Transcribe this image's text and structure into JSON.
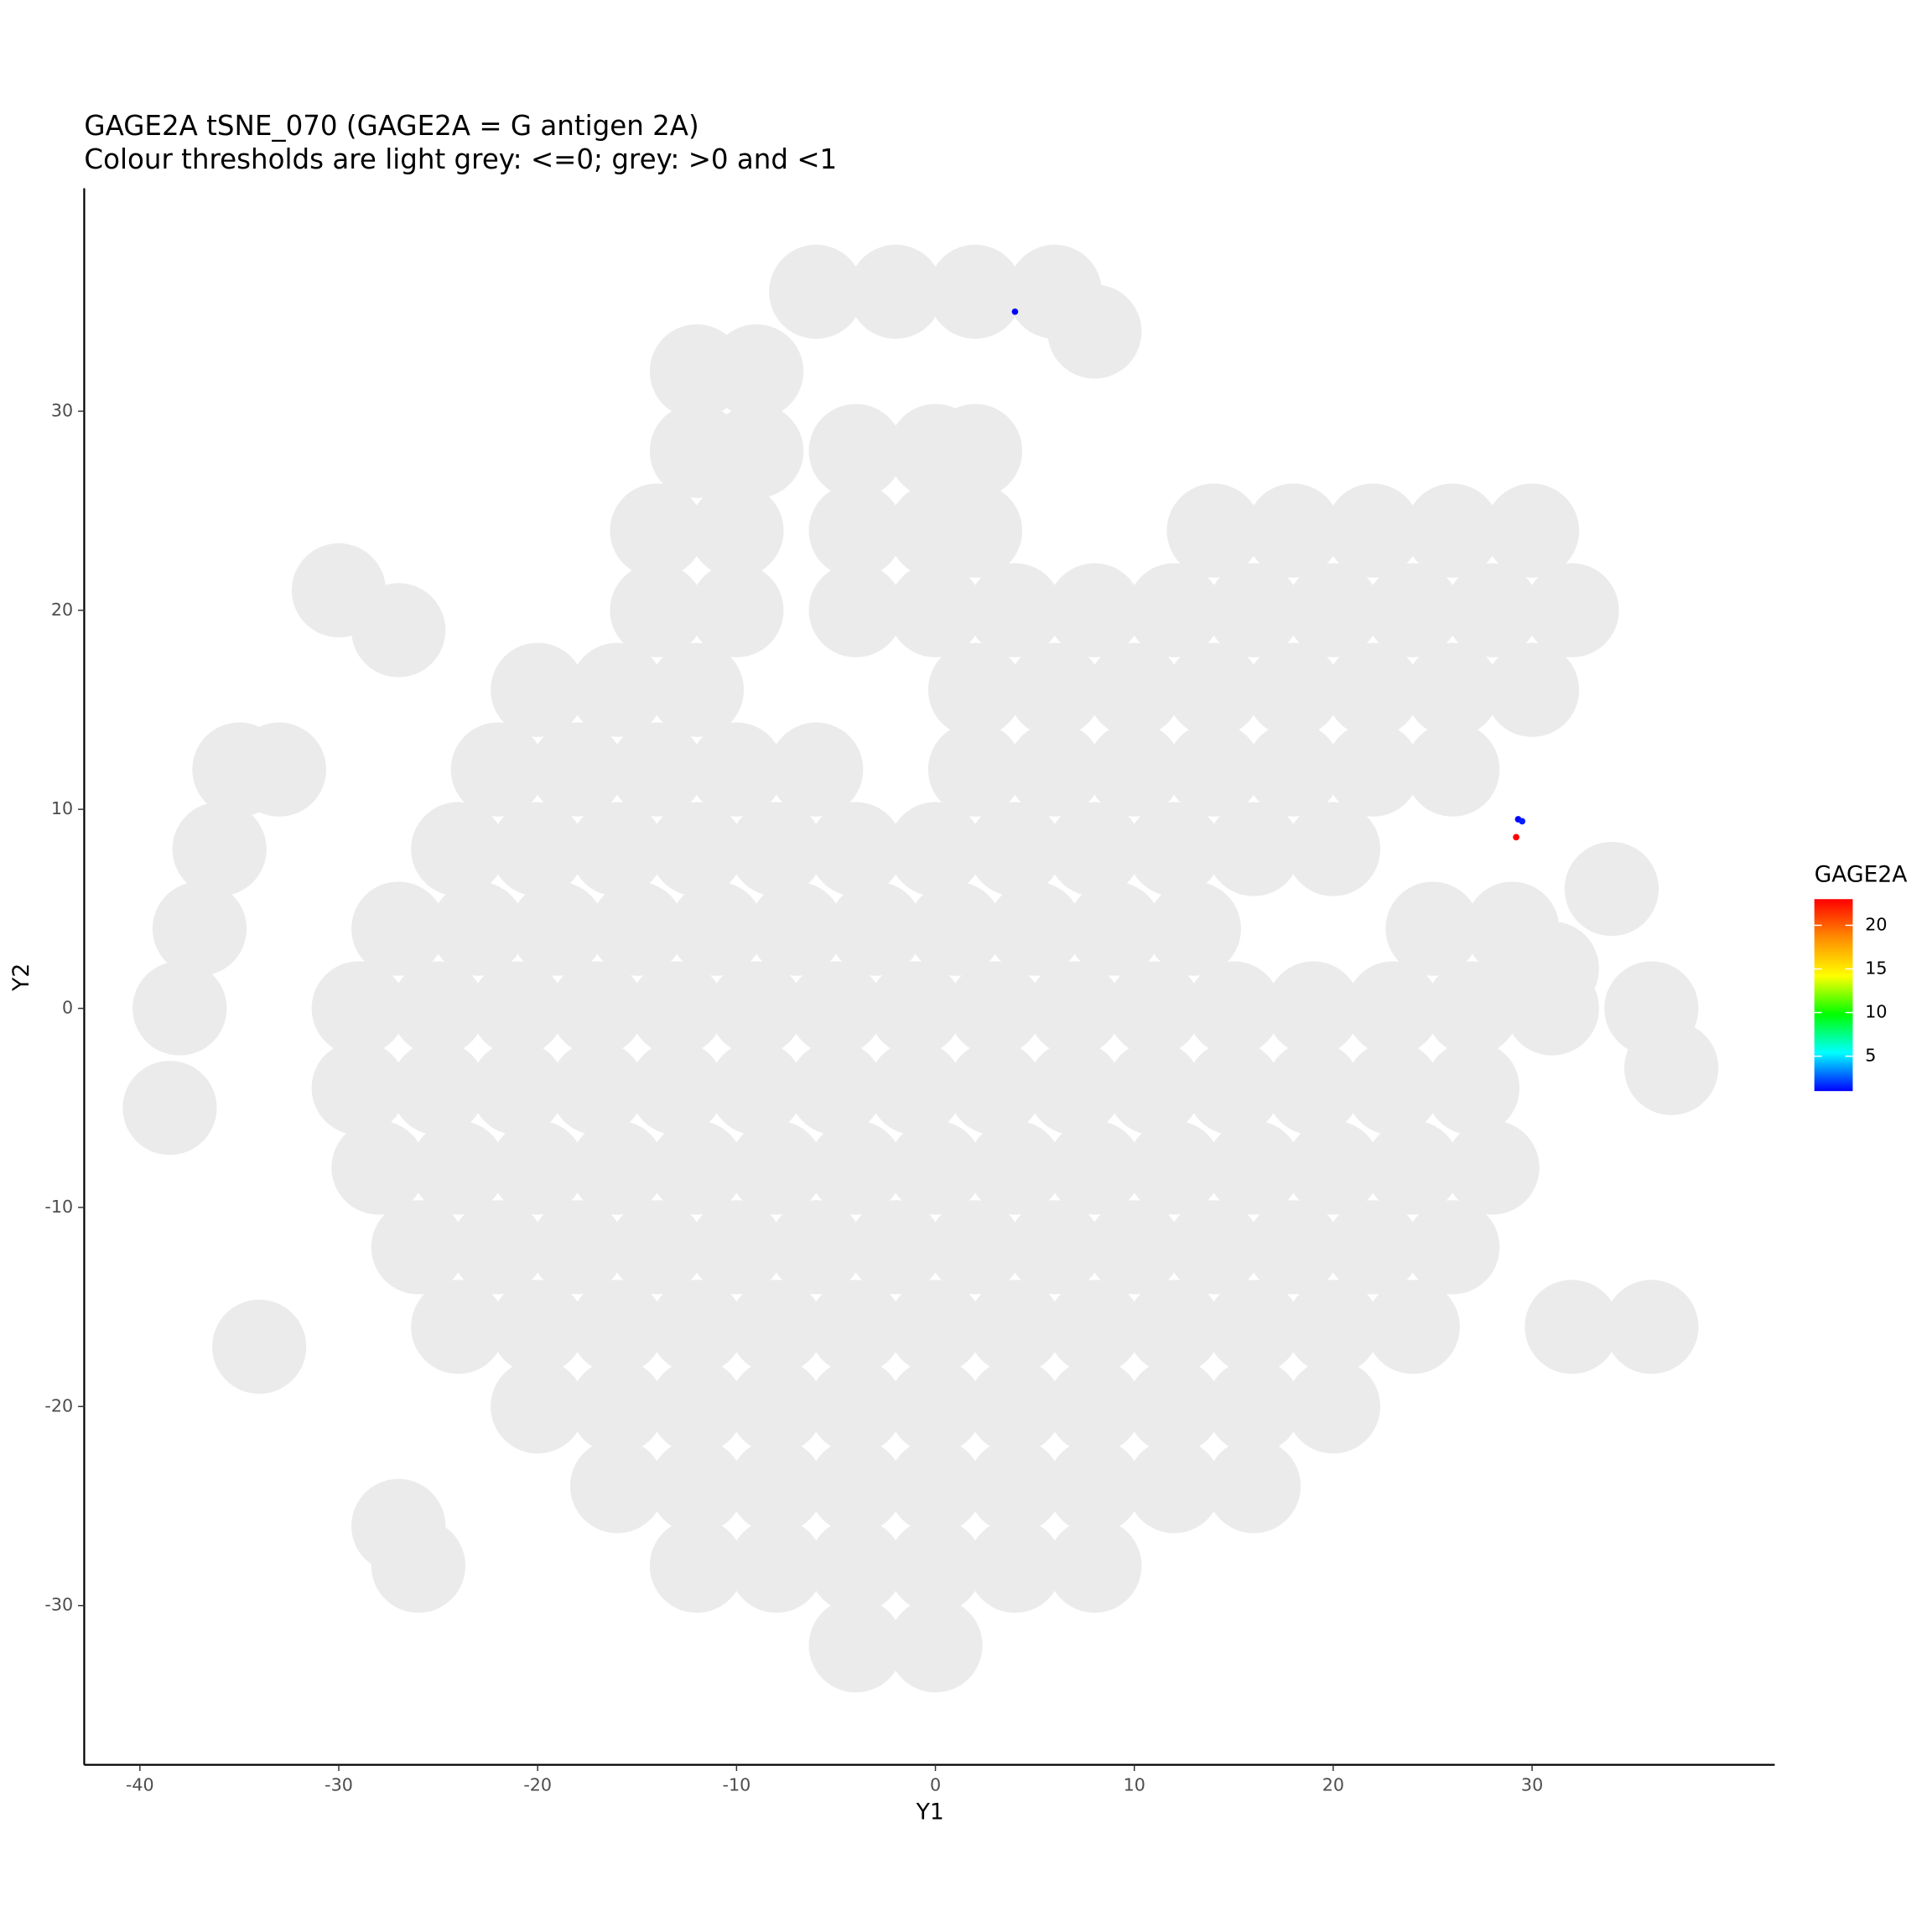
{
  "chart_data": {
    "type": "scatter",
    "title": "GAGE2A tSNE_070 (GAGE2A = G antigen 2A)",
    "subtitle": "Colour thresholds are light grey: <=0; grey: >0 and <1",
    "xlabel": "Y1",
    "ylabel": "Y2",
    "xlim": [
      -42.8,
      42.2
    ],
    "ylim": [
      -38,
      41.2
    ],
    "xticks": [
      -40,
      -30,
      -20,
      -10,
      0,
      10,
      20,
      30
    ],
    "yticks": [
      -30,
      -20,
      -10,
      0,
      10,
      20,
      30
    ],
    "series": [
      {
        "color": "#ebebeb",
        "x": [
          -4,
          0,
          -12,
          -8,
          -4,
          0,
          4,
          8,
          -16,
          -12,
          -8,
          -4,
          0,
          4,
          8,
          12,
          16,
          -20,
          -16,
          -12,
          -8,
          -4,
          0,
          4,
          8,
          12,
          16,
          20,
          -24,
          -20,
          -16,
          -12,
          -8,
          -4,
          0,
          4,
          8,
          12,
          16,
          20,
          24,
          -26,
          -22,
          -18,
          -14,
          -10,
          -6,
          -2,
          2,
          6,
          10,
          14,
          18,
          22,
          26,
          -28,
          -24,
          -20,
          -16,
          -12,
          -8,
          -4,
          0,
          4,
          8,
          12,
          16,
          20,
          24,
          28,
          -29,
          -25,
          -21,
          -17,
          -13,
          -9,
          -5,
          -1,
          3,
          7,
          11,
          15,
          19,
          23,
          27,
          -29,
          -25,
          -21,
          -17,
          -13,
          -9,
          -5,
          -1,
          3,
          7,
          11,
          15,
          19,
          23,
          27,
          31,
          -27,
          -23,
          -19,
          -15,
          -11,
          -7,
          -3,
          1,
          5,
          9,
          13,
          25,
          29,
          -24,
          -20,
          -16,
          -12,
          -8,
          -4,
          0,
          4,
          8,
          12,
          16,
          20,
          -22,
          -18,
          -14,
          -10,
          -6,
          2,
          6,
          10,
          14,
          18,
          22,
          26,
          -20,
          -16,
          -12,
          2,
          6,
          10,
          14,
          18,
          22,
          26,
          30,
          -14,
          -10,
          -4,
          0,
          4,
          8,
          12,
          16,
          20,
          24,
          28,
          32,
          -14,
          -10,
          -4,
          0,
          2,
          14,
          18,
          22,
          26,
          30,
          -12,
          -9,
          -4,
          0,
          2,
          -12,
          -9,
          -6,
          -2,
          2,
          6,
          8,
          -38,
          -37,
          -36,
          -35,
          -38.5,
          -27,
          -26,
          -34,
          -30,
          -27,
          34,
          36,
          37,
          32,
          36,
          31,
          -33
        ],
        "values": [
          -32,
          -32,
          -28,
          -28,
          -28,
          -28,
          -28,
          -28,
          -24,
          -24,
          -24,
          -24,
          -24,
          -24,
          -24,
          -24,
          -24,
          -20,
          -20,
          -20,
          -20,
          -20,
          -20,
          -20,
          -20,
          -20,
          -20,
          -20,
          -16,
          -16,
          -16,
          -16,
          -16,
          -16,
          -16,
          -16,
          -16,
          -16,
          -16,
          -16,
          -16,
          -12,
          -12,
          -12,
          -12,
          -12,
          -12,
          -12,
          -12,
          -12,
          -12,
          -12,
          -12,
          -12,
          -12,
          -8,
          -8,
          -8,
          -8,
          -8,
          -8,
          -8,
          -8,
          -8,
          -8,
          -8,
          -8,
          -8,
          -8,
          -8,
          -4,
          -4,
          -4,
          -4,
          -4,
          -4,
          -4,
          -4,
          -4,
          -4,
          -4,
          -4,
          -4,
          -4,
          -4,
          0,
          0,
          0,
          0,
          0,
          0,
          0,
          0,
          0,
          0,
          0,
          0,
          0,
          0,
          0,
          0,
          4,
          4,
          4,
          4,
          4,
          4,
          4,
          4,
          4,
          4,
          4,
          4,
          4,
          8,
          8,
          8,
          8,
          8,
          8,
          8,
          8,
          8,
          8,
          8,
          8,
          12,
          12,
          12,
          12,
          12,
          12,
          12,
          12,
          12,
          12,
          12,
          12,
          16,
          16,
          16,
          16,
          16,
          16,
          16,
          16,
          16,
          16,
          16,
          20,
          20,
          20,
          20,
          20,
          20,
          20,
          20,
          20,
          20,
          20,
          20,
          24,
          24,
          24,
          24,
          24,
          24,
          24,
          24,
          24,
          24,
          28,
          28,
          28,
          28,
          28,
          32,
          32,
          36,
          36,
          36,
          36,
          34,
          0,
          4,
          8,
          12,
          -5,
          -26,
          -28,
          -17,
          21,
          19,
          6,
          0,
          -3,
          -16,
          -16,
          2,
          12
        ]
      },
      {
        "x": [
          4,
          29.3,
          29.5,
          29.2
        ],
        "values": [
          35,
          9.5,
          9.4,
          8.6
        ],
        "expression": [
          1,
          1,
          1.5,
          23
        ]
      }
    ],
    "colorbar": {
      "title": "GAGE2A",
      "lim": [
        1,
        23
      ],
      "ticks": [
        5,
        10,
        15,
        20
      ],
      "colors": [
        "#0000ff",
        "#00ffff",
        "#00ff00",
        "#ffff00",
        "#ff8c00",
        "#ff0000"
      ]
    }
  }
}
